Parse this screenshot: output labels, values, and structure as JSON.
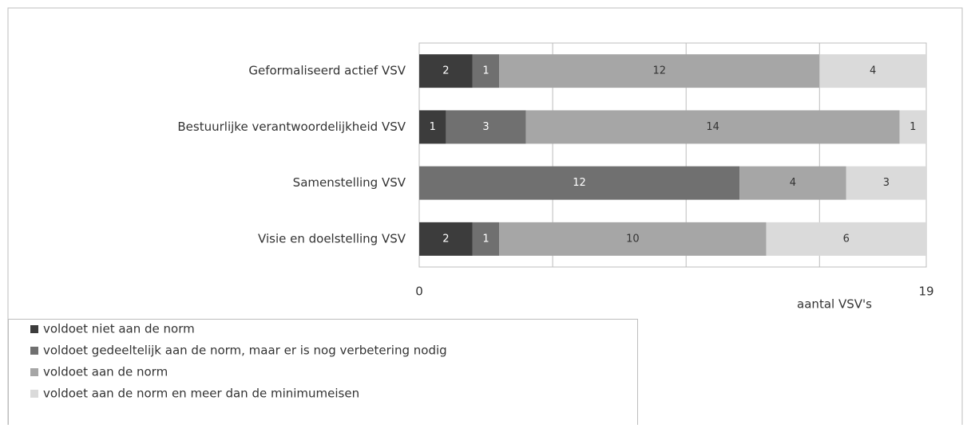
{
  "chart_data": {
    "type": "stacked-bar-horizontal",
    "categories": [
      "Geformaliseerd actief VSV",
      "Bestuurlijke verantwoordelijkheid VSV",
      "Samenstelling VSV",
      "Visie en doelstelling VSV"
    ],
    "series": [
      {
        "name": "voldoet niet aan de norm",
        "color": "#3c3c3c",
        "values": [
          2,
          1,
          null,
          2
        ]
      },
      {
        "name": "voldoet gedeeltelijk aan de norm, maar er is nog verbetering nodig",
        "color": "#707070",
        "values": [
          1,
          3,
          12,
          1
        ]
      },
      {
        "name": "voldoet aan de norm",
        "color": "#a6a6a6",
        "values": [
          12,
          14,
          4,
          10
        ]
      },
      {
        "name": "voldoet aan de norm en meer dan de minimumeisen",
        "color": "#dadada",
        "values": [
          4,
          1,
          3,
          6
        ]
      }
    ],
    "x_label": "aantal VSV's",
    "xlim": [
      0,
      19
    ],
    "xticks": [
      0,
      19
    ],
    "xgrid": [
      5,
      10,
      15
    ]
  }
}
